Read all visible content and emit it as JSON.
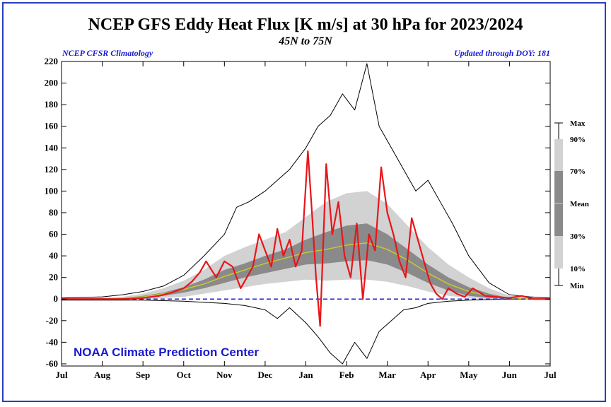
{
  "header": {
    "title": "NCEP GFS Eddy Heat Flux [K m/s] at 30 hPa for 2023/2024",
    "subtitle": "45N to 75N",
    "left_note": "NCEP CFSR Climatology",
    "right_note": "Updated through DOY: 181"
  },
  "credit": "NOAA Climate Prediction Center",
  "colors": {
    "current": "#e8151a",
    "mean": "#c8c832",
    "band_10_90": "#d2d2d2",
    "band_30_70": "#8a8a8a",
    "min_max": "#000000",
    "zero_line": "#1a1ad0",
    "frame": "#2a3fbf"
  },
  "chart_data": {
    "type": "line",
    "title": "NCEP GFS Eddy Heat Flux [K m/s] at 30 hPa for 2023/2024",
    "subtitle": "45N to 75N",
    "ylim": [
      -62,
      220
    ],
    "y_ticks": [
      220,
      200,
      180,
      160,
      140,
      120,
      100,
      80,
      60,
      40,
      20,
      0,
      -20,
      -40,
      -60
    ],
    "x_ticks": [
      "Jul",
      "Aug",
      "Sep",
      "Oct",
      "Nov",
      "Dec",
      "Jan",
      "Feb",
      "Mar",
      "Apr",
      "May",
      "Jun",
      "Jul"
    ],
    "xlim": [
      0,
      12
    ],
    "legend": {
      "position": "right",
      "entries": [
        "Max",
        "90%",
        "70%",
        "Mean",
        "30%",
        "10%",
        "Min"
      ]
    },
    "zero_line": true,
    "series": [
      {
        "name": "Max",
        "role": "max",
        "x": [
          0,
          1,
          1.5,
          2,
          2.5,
          3,
          3.5,
          4,
          4.3,
          4.6,
          5,
          5.3,
          5.6,
          6,
          6.3,
          6.6,
          6.9,
          7.2,
          7.5,
          7.8,
          8.1,
          8.4,
          8.7,
          9,
          9.3,
          9.6,
          10,
          10.5,
          11,
          11.5,
          12
        ],
        "y": [
          1,
          2,
          4,
          7,
          12,
          22,
          40,
          60,
          85,
          90,
          100,
          110,
          120,
          140,
          160,
          170,
          190,
          175,
          218,
          160,
          140,
          120,
          100,
          110,
          90,
          70,
          40,
          15,
          4,
          2,
          1
        ]
      },
      {
        "name": "90%",
        "role": "p90",
        "x": [
          0,
          1,
          1.5,
          2,
          2.5,
          3,
          3.5,
          4,
          4.5,
          5,
          5.5,
          6,
          6.5,
          7,
          7.5,
          8,
          8.5,
          9,
          9.5,
          10,
          10.5,
          11,
          11.5,
          12
        ],
        "y": [
          1,
          1,
          2,
          5,
          10,
          17,
          27,
          40,
          48,
          55,
          62,
          76,
          90,
          98,
          100,
          88,
          68,
          48,
          32,
          20,
          10,
          3,
          1,
          1
        ]
      },
      {
        "name": "70%",
        "role": "p70",
        "x": [
          0,
          1,
          1.5,
          2,
          2.5,
          3,
          3.5,
          4,
          4.5,
          5,
          5.5,
          6,
          6.5,
          7,
          7.5,
          8,
          8.5,
          9,
          9.5,
          10,
          10.5,
          11,
          11.5,
          12
        ],
        "y": [
          0,
          1,
          1,
          3,
          6,
          11,
          18,
          27,
          33,
          40,
          46,
          55,
          62,
          68,
          70,
          60,
          46,
          32,
          20,
          11,
          5,
          1,
          0,
          0
        ]
      },
      {
        "name": "Mean",
        "role": "mean",
        "x": [
          0,
          1,
          1.5,
          2,
          2.5,
          3,
          3.5,
          4,
          4.5,
          5,
          5.5,
          6,
          6.5,
          7,
          7.5,
          8,
          8.5,
          9,
          9.5,
          10,
          10.5,
          11,
          11.5,
          12
        ],
        "y": [
          0,
          0,
          1,
          2,
          5,
          9,
          14,
          21,
          27,
          33,
          38,
          43,
          46,
          50,
          52,
          46,
          36,
          24,
          14,
          7,
          3,
          1,
          0,
          0
        ]
      },
      {
        "name": "30%",
        "role": "p30",
        "x": [
          0,
          1,
          1.5,
          2,
          2.5,
          3,
          3.5,
          4,
          4.5,
          5,
          5.5,
          6,
          6.5,
          7,
          7.5,
          8,
          8.5,
          9,
          9.5,
          10,
          10.5,
          11,
          11.5,
          12
        ],
        "y": [
          0,
          0,
          0,
          1,
          3,
          6,
          10,
          15,
          20,
          24,
          28,
          32,
          33,
          35,
          36,
          32,
          24,
          15,
          8,
          3,
          1,
          0,
          0,
          0
        ]
      },
      {
        "name": "10%",
        "role": "p10",
        "x": [
          0,
          1,
          1.5,
          2,
          2.5,
          3,
          3.5,
          4,
          4.5,
          5,
          5.5,
          6,
          6.5,
          7,
          7.5,
          8,
          8.5,
          9,
          9.5,
          10,
          10.5,
          11,
          11.5,
          12
        ],
        "y": [
          0,
          0,
          0,
          0,
          1,
          2,
          5,
          8,
          11,
          14,
          16,
          18,
          17,
          18,
          18,
          16,
          12,
          7,
          3,
          1,
          0,
          0,
          0,
          0
        ]
      },
      {
        "name": "Min",
        "role": "min",
        "x": [
          0,
          1,
          2,
          3,
          3.5,
          4,
          4.5,
          5,
          5.3,
          5.6,
          6,
          6.3,
          6.6,
          6.9,
          7.2,
          7.5,
          7.8,
          8.1,
          8.4,
          8.7,
          9,
          9.5,
          10,
          11,
          12
        ],
        "y": [
          -1,
          -1,
          -1,
          -2,
          -3,
          -4,
          -6,
          -10,
          -18,
          -8,
          -22,
          -35,
          -50,
          -60,
          -40,
          -55,
          -30,
          -20,
          -10,
          -8,
          -4,
          -2,
          -1,
          0,
          0
        ]
      },
      {
        "name": "2023/2024",
        "role": "current",
        "x": [
          0,
          1,
          1.5,
          2,
          2.4,
          2.7,
          3,
          3.2,
          3.4,
          3.55,
          3.8,
          4.0,
          4.2,
          4.4,
          4.55,
          4.7,
          4.85,
          5.0,
          5.15,
          5.3,
          5.45,
          5.6,
          5.75,
          5.9,
          6.05,
          6.15,
          6.25,
          6.35,
          6.5,
          6.65,
          6.8,
          6.95,
          7.1,
          7.25,
          7.4,
          7.55,
          7.7,
          7.85,
          8.0,
          8.15,
          8.3,
          8.45,
          8.6,
          8.75,
          8.9,
          9.05,
          9.2,
          9.35,
          9.5,
          9.7,
          9.9,
          10.1,
          10.4,
          10.7,
          11,
          11.3,
          11.6,
          12
        ],
        "y": [
          0,
          0,
          0,
          1,
          3,
          6,
          10,
          16,
          25,
          35,
          20,
          35,
          30,
          10,
          20,
          30,
          60,
          45,
          30,
          65,
          40,
          55,
          30,
          45,
          137,
          80,
          20,
          -25,
          125,
          60,
          90,
          40,
          20,
          70,
          0,
          60,
          45,
          122,
          80,
          60,
          35,
          20,
          75,
          55,
          35,
          15,
          5,
          0,
          10,
          5,
          2,
          10,
          3,
          2,
          1,
          3,
          0,
          0
        ]
      }
    ]
  }
}
